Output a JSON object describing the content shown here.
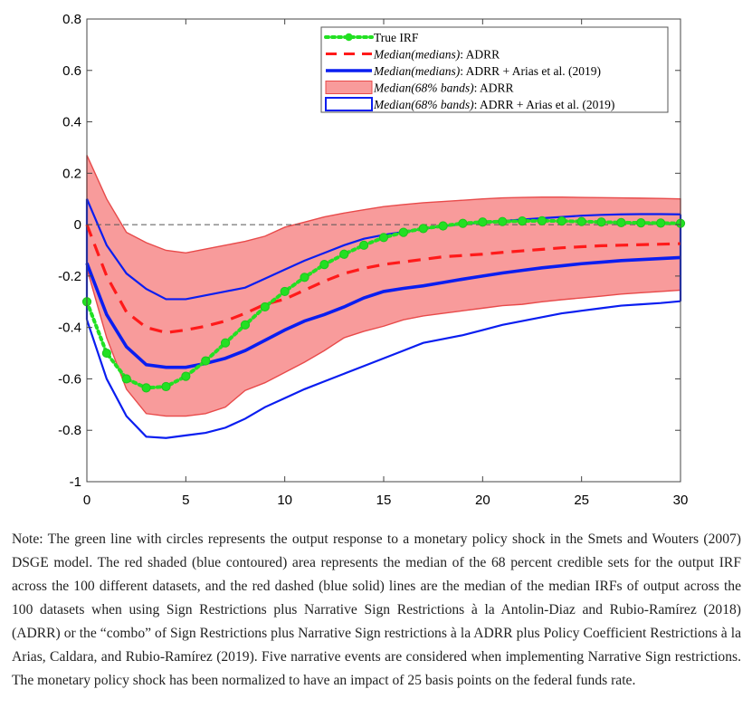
{
  "chart_data": {
    "type": "line",
    "title": "",
    "xlabel": "",
    "ylabel": "",
    "xlim": [
      0,
      30
    ],
    "ylim": [
      -1,
      0.8
    ],
    "x_ticks": [
      0,
      5,
      10,
      15,
      20,
      25,
      30
    ],
    "x_tick_labels": [
      "0",
      "5",
      "10",
      "15",
      "20",
      "25",
      "30"
    ],
    "y_ticks": [
      0.8,
      0.6,
      0.4,
      0.2,
      0,
      -0.2,
      -0.4,
      -0.6,
      -0.8,
      -1
    ],
    "y_tick_labels": [
      "0.8",
      "0.6",
      "0.4",
      "0.2",
      "0",
      "-0.2",
      "-0.4",
      "-0.6",
      "-0.8",
      "-1"
    ],
    "zero_line": true,
    "grid": false,
    "legend_position": "top-right",
    "x": [
      0,
      1,
      2,
      3,
      4,
      5,
      6,
      7,
      8,
      9,
      10,
      11,
      12,
      13,
      14,
      15,
      16,
      17,
      18,
      19,
      20,
      21,
      22,
      23,
      24,
      25,
      26,
      27,
      28,
      29,
      30
    ],
    "series": [
      {
        "name": "True IRF",
        "legend_label": "True IRF",
        "style": "green-dotted-circles",
        "color": "#22e022",
        "values": [
          -0.3,
          -0.5,
          -0.6,
          -0.635,
          -0.63,
          -0.59,
          -0.53,
          -0.46,
          -0.39,
          -0.32,
          -0.26,
          -0.205,
          -0.155,
          -0.115,
          -0.08,
          -0.05,
          -0.03,
          -0.015,
          -0.005,
          0.005,
          0.01,
          0.012,
          0.014,
          0.015,
          0.014,
          0.012,
          0.01,
          0.008,
          0.007,
          0.006,
          0.005
        ]
      },
      {
        "name": "Median(medians): ADRR",
        "legend_label_em": "Median(medians)",
        "legend_label_rest": ": ADRR",
        "style": "red-dashed",
        "color": "#ff1a1a",
        "values": [
          0.0,
          -0.2,
          -0.34,
          -0.4,
          -0.42,
          -0.41,
          -0.395,
          -0.375,
          -0.345,
          -0.31,
          -0.29,
          -0.255,
          -0.22,
          -0.19,
          -0.17,
          -0.155,
          -0.145,
          -0.135,
          -0.125,
          -0.12,
          -0.115,
          -0.108,
          -0.102,
          -0.096,
          -0.09,
          -0.086,
          -0.082,
          -0.08,
          -0.078,
          -0.076,
          -0.074
        ]
      },
      {
        "name": "Median(medians): ADRR + Arias et al. (2019)",
        "legend_label_em": "Median(medians)",
        "legend_label_rest": ": ADRR + Arias et al. (2019)",
        "style": "blue-solid-thick",
        "color": "#0a1ef0",
        "values": [
          -0.15,
          -0.35,
          -0.475,
          -0.545,
          -0.555,
          -0.555,
          -0.54,
          -0.52,
          -0.49,
          -0.45,
          -0.41,
          -0.375,
          -0.35,
          -0.32,
          -0.285,
          -0.26,
          -0.248,
          -0.238,
          -0.225,
          -0.212,
          -0.2,
          -0.188,
          -0.178,
          -0.168,
          -0.16,
          -0.152,
          -0.146,
          -0.14,
          -0.136,
          -0.132,
          -0.128
        ]
      }
    ],
    "bands": [
      {
        "name": "Median(68% bands): ADRR",
        "legend_label_em": "Median(68% bands)",
        "legend_label_rest": ": ADRR",
        "style": "red-shaded",
        "color": "#f89b9b",
        "upper": [
          0.27,
          0.1,
          -0.03,
          -0.07,
          -0.1,
          -0.11,
          -0.095,
          -0.08,
          -0.065,
          -0.045,
          -0.01,
          0.01,
          0.03,
          0.045,
          0.058,
          0.07,
          0.078,
          0.085,
          0.09,
          0.095,
          0.1,
          0.104,
          0.106,
          0.107,
          0.107,
          0.106,
          0.105,
          0.104,
          0.103,
          0.102,
          0.1
        ],
        "lower": [
          -0.17,
          -0.44,
          -0.64,
          -0.735,
          -0.745,
          -0.745,
          -0.735,
          -0.71,
          -0.645,
          -0.615,
          -0.575,
          -0.535,
          -0.49,
          -0.44,
          -0.415,
          -0.395,
          -0.37,
          -0.355,
          -0.345,
          -0.335,
          -0.325,
          -0.315,
          -0.31,
          -0.3,
          -0.292,
          -0.285,
          -0.278,
          -0.27,
          -0.265,
          -0.26,
          -0.255
        ]
      },
      {
        "name": "Median(68% bands): ADRR + Arias et al. (2019)",
        "legend_label_em": "Median(68% bands)",
        "legend_label_rest": ": ADRR + Arias et al. (2019)",
        "style": "blue-contour",
        "color": "#0a1ef0",
        "upper": [
          0.1,
          -0.08,
          -0.19,
          -0.25,
          -0.29,
          -0.29,
          -0.275,
          -0.26,
          -0.245,
          -0.21,
          -0.175,
          -0.14,
          -0.11,
          -0.08,
          -0.055,
          -0.04,
          -0.028,
          -0.016,
          -0.006,
          0.002,
          0.008,
          0.014,
          0.02,
          0.025,
          0.03,
          0.035,
          0.038,
          0.04,
          0.041,
          0.041,
          0.04
        ],
        "lower": [
          -0.37,
          -0.6,
          -0.745,
          -0.825,
          -0.83,
          -0.82,
          -0.81,
          -0.79,
          -0.755,
          -0.71,
          -0.675,
          -0.64,
          -0.61,
          -0.58,
          -0.55,
          -0.52,
          -0.49,
          -0.46,
          -0.445,
          -0.43,
          -0.41,
          -0.39,
          -0.375,
          -0.36,
          -0.345,
          -0.335,
          -0.325,
          -0.315,
          -0.31,
          -0.305,
          -0.298
        ]
      }
    ]
  },
  "note": "Note: The green line with circles represents the output response to a monetary policy shock in the Smets and Wouters (2007) DSGE model. The red shaded (blue contoured) area represents the median of the 68 percent credible sets for the output IRF across the 100 different datasets, and the red dashed (blue solid) lines are the median of the median IRFs of output across the 100 datasets when using Sign Restrictions plus Narrative Sign Restrictions à la Antolin-Diaz and Rubio-Ramírez (2018) (ADRR) or the “combo” of Sign Restrictions plus Narrative Sign restrictions à la ADRR plus Policy Coefficient Restrictions à la Arias, Caldara, and Rubio-Ramírez (2019). Five narrative events are considered when implementing Narrative Sign restrictions. The monetary policy shock has been normalized to have an impact of 25 basis points on the federal funds rate."
}
